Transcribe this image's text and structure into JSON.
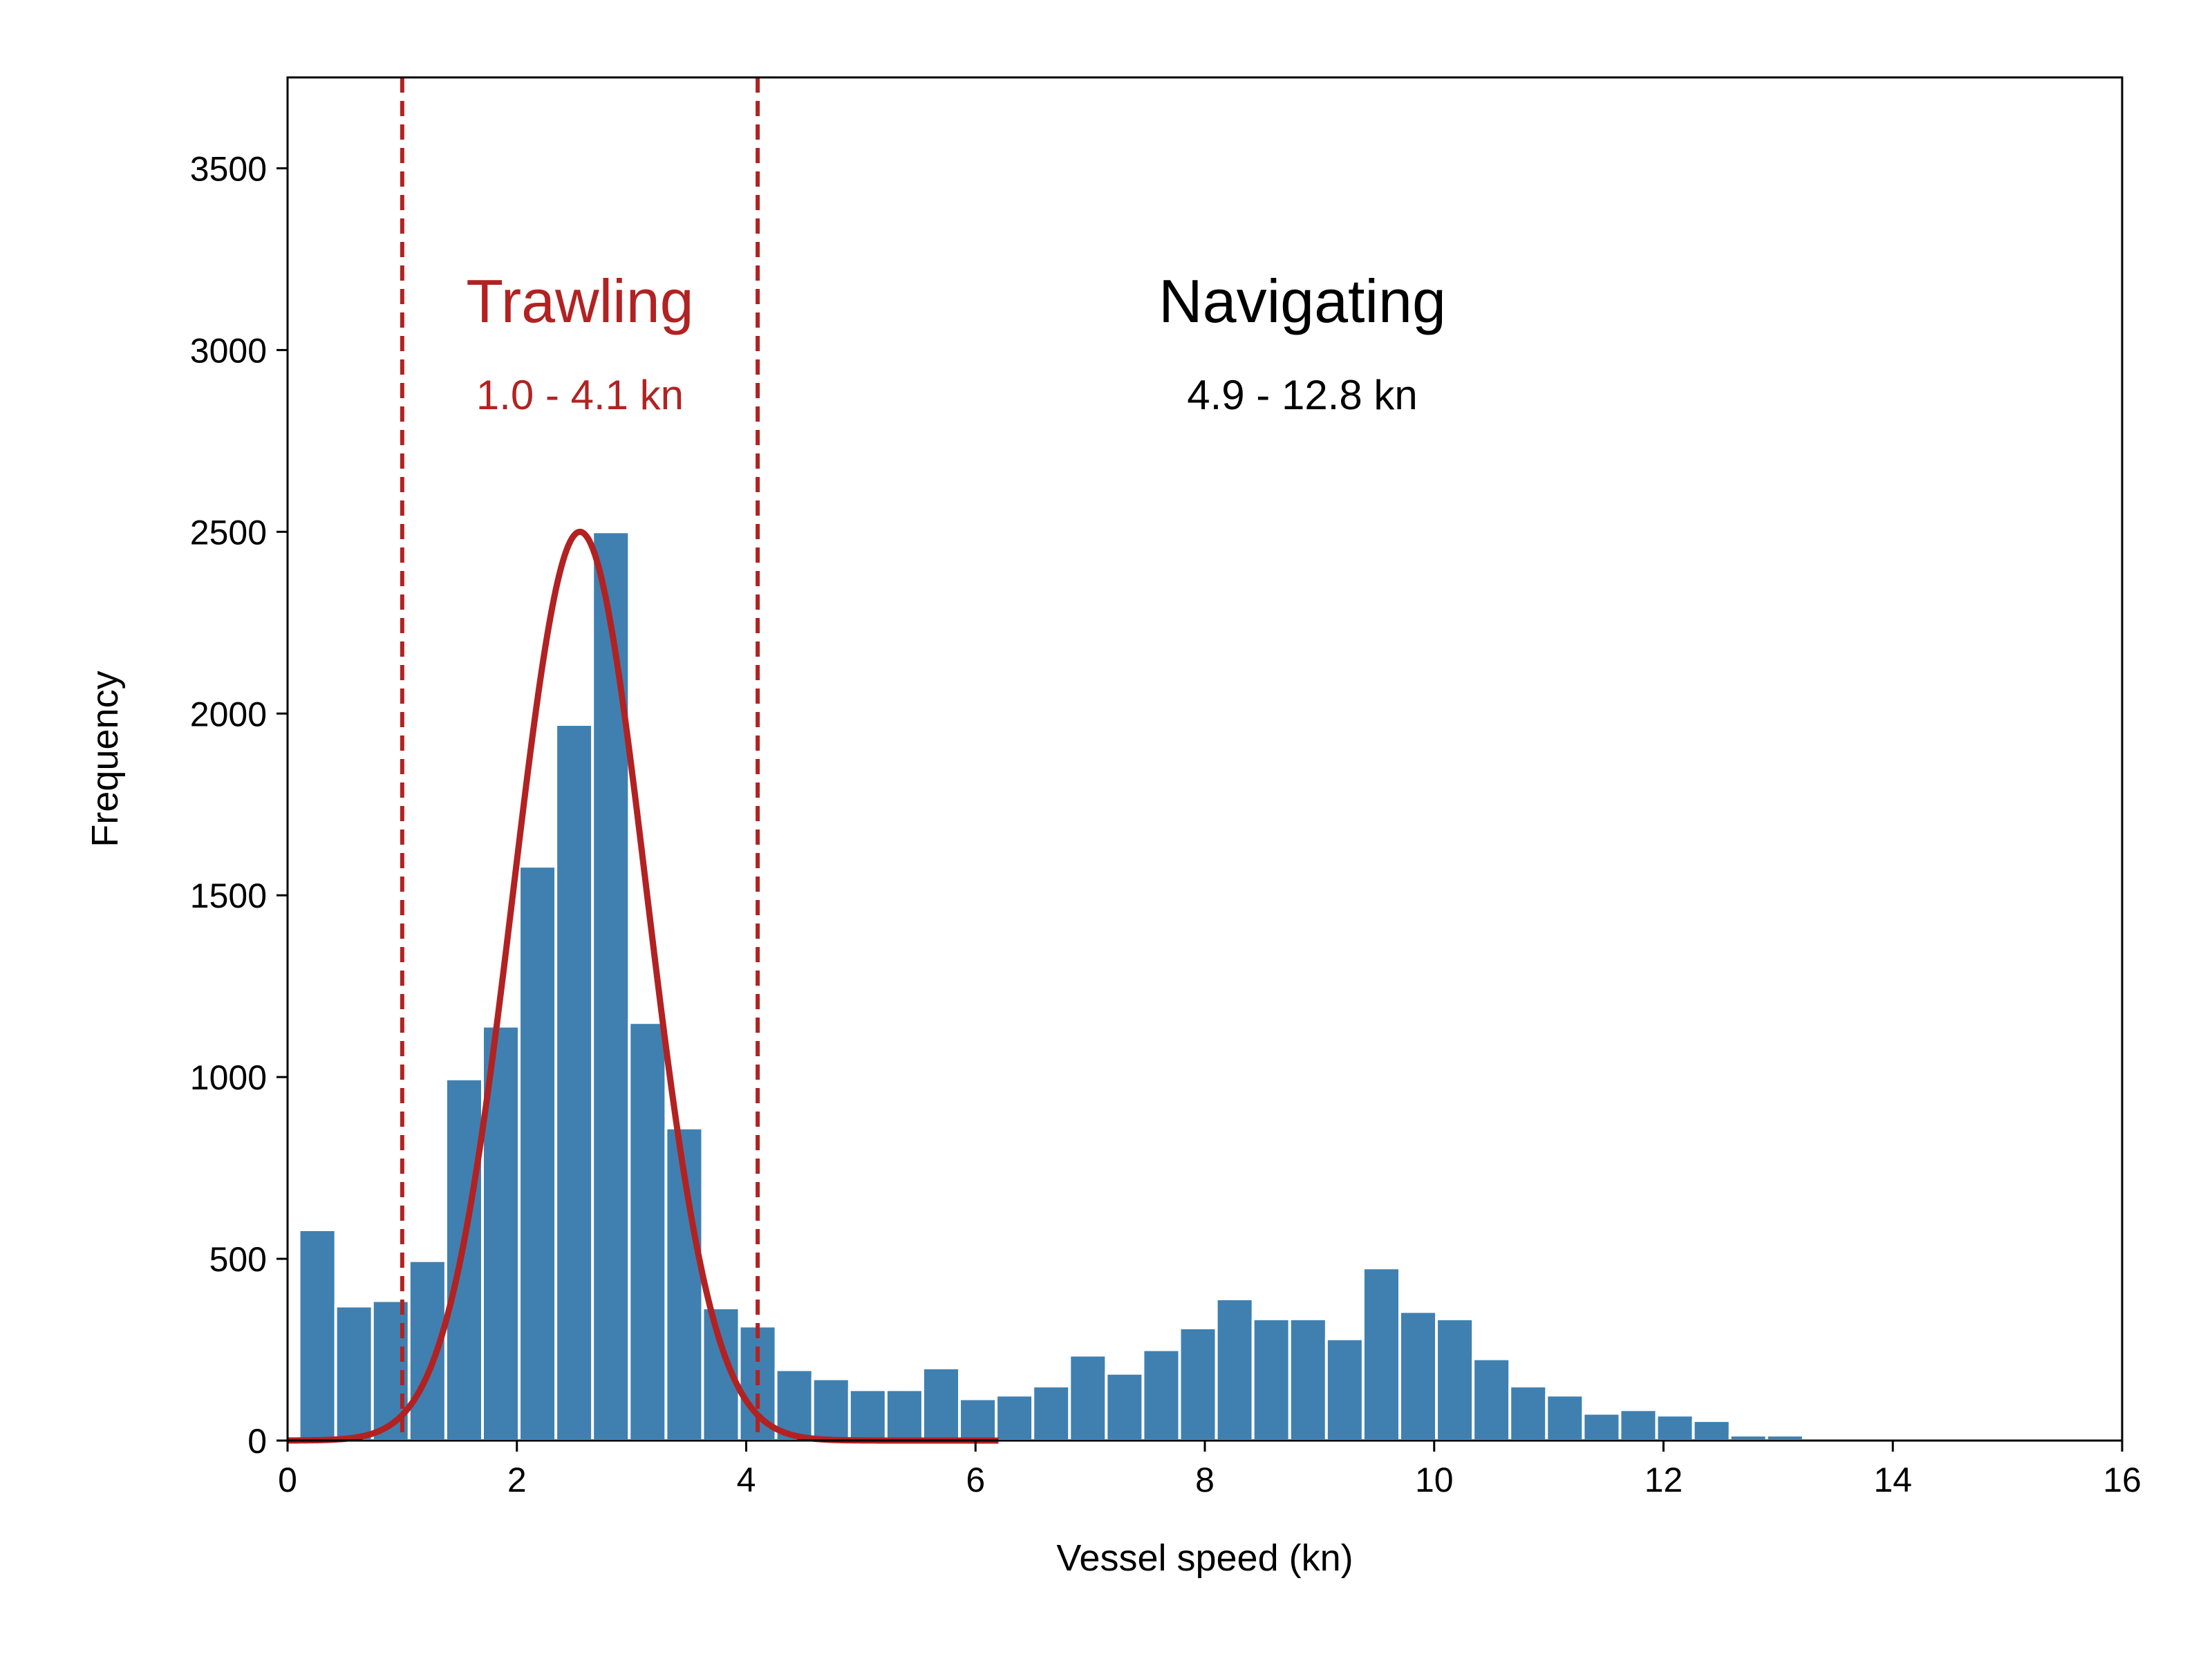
{
  "chart_data": {
    "type": "bar",
    "title": "",
    "xlabel": "Vessel speed (kn)",
    "ylabel": "Frequency",
    "xlim": [
      0,
      16
    ],
    "ylim": [
      0,
      3750
    ],
    "xticks": [
      0,
      2,
      4,
      6,
      8,
      10,
      12,
      14,
      16
    ],
    "yticks": [
      0,
      500,
      1000,
      1500,
      2000,
      2500,
      3000,
      3500
    ],
    "grid": false,
    "bin_width": 0.32,
    "bins": [
      {
        "start": 0.0,
        "value": 0
      },
      {
        "start": 0.32,
        "value": 0
      },
      {
        "start": 0.64,
        "value": 0
      }
    ],
    "histogram": {
      "bin_starts": [
        0.1,
        0.42,
        0.74,
        1.06,
        1.38,
        1.7,
        2.02,
        2.34,
        2.66,
        2.98,
        3.3,
        3.62,
        3.94,
        4.26,
        4.58,
        4.9,
        5.22,
        5.54,
        5.86,
        6.18,
        6.5,
        6.82,
        7.14,
        7.46,
        7.78,
        8.1,
        8.42,
        8.74,
        9.06,
        9.38,
        9.7,
        10.02,
        10.34,
        10.66,
        10.98,
        11.3,
        11.62,
        11.94,
        12.26,
        12.58,
        12.9,
        13.22,
        13.54
      ],
      "values": [
        580,
        370,
        385,
        495,
        995,
        1140,
        1580,
        1970,
        2500,
        1150,
        860,
        365,
        315,
        195,
        170,
        140,
        140,
        200,
        115,
        125,
        150,
        235,
        185,
        250,
        310,
        390,
        335,
        335,
        280,
        475,
        355,
        335,
        225,
        150,
        125,
        75,
        85,
        70,
        55,
        15,
        15,
        5,
        0
      ],
      "color": "#3f80b0"
    },
    "fit_curve": {
      "type": "gaussian",
      "peak": 2500,
      "mean": 2.55,
      "sd": 0.58,
      "color": "#b22222"
    },
    "threshold_lines": [
      {
        "x": 1.0,
        "color": "#b22222",
        "style": "dashed"
      },
      {
        "x": 4.1,
        "color": "#b22222",
        "style": "dashed"
      }
    ],
    "annotations": {
      "trawling": {
        "title": "Trawling",
        "range": "1.0 - 4.1 kn",
        "x": 2.55,
        "color": "#b22222"
      },
      "navigating": {
        "title": "Navigating",
        "range": "4.9 - 12.8 kn",
        "x": 8.85,
        "color": "#000000"
      }
    }
  }
}
